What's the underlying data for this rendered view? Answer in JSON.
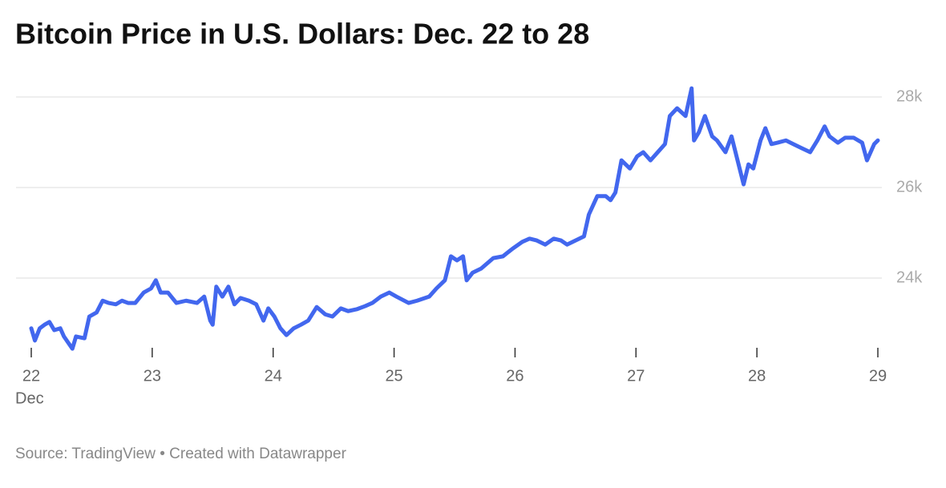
{
  "chart_data": {
    "type": "line",
    "title": "Bitcoin Price in U.S. Dollars: Dec. 22 to 28",
    "source": "Source: TradingView • Created with Datawrapper",
    "x_axis_label": "Dec",
    "xlim": [
      22,
      29
    ],
    "xticks": [
      22,
      23,
      24,
      25,
      26,
      27,
      28,
      29
    ],
    "ylim": [
      22500,
      28400
    ],
    "yticks": [
      {
        "value": 24000,
        "label": "24k"
      },
      {
        "value": 26000,
        "label": "26k"
      },
      {
        "value": 28000,
        "label": "28k"
      }
    ],
    "grid": true,
    "series": [
      {
        "color": "#4267ee",
        "x": [
          22.0,
          22.03,
          22.07,
          22.11,
          22.15,
          22.19,
          22.24,
          22.27,
          22.34,
          22.37,
          22.44,
          22.48,
          22.54,
          22.59,
          22.64,
          22.7,
          22.75,
          22.8,
          22.86,
          22.93,
          22.99,
          23.03,
          23.07,
          23.13,
          23.2,
          23.28,
          23.37,
          23.43,
          23.48,
          23.5,
          23.53,
          23.58,
          23.63,
          23.68,
          23.73,
          23.8,
          23.86,
          23.92,
          23.96,
          24.01,
          24.06,
          24.11,
          24.17,
          24.23,
          24.29,
          24.36,
          24.43,
          24.49,
          24.56,
          24.62,
          24.69,
          24.76,
          24.82,
          24.89,
          24.96,
          25.02,
          25.12,
          25.19,
          25.29,
          25.35,
          25.42,
          25.47,
          25.52,
          25.57,
          25.6,
          25.65,
          25.72,
          25.82,
          25.9,
          25.98,
          26.06,
          26.12,
          26.18,
          26.25,
          26.32,
          26.38,
          26.43,
          26.5,
          26.57,
          26.61,
          26.68,
          26.75,
          26.79,
          26.83,
          26.88,
          26.95,
          27.01,
          27.06,
          27.12,
          27.18,
          27.24,
          27.28,
          27.34,
          27.41,
          27.46,
          27.48,
          27.52,
          27.57,
          27.63,
          27.67,
          27.74,
          27.79,
          27.84,
          27.89,
          27.93,
          27.97,
          28.03,
          28.07,
          28.12,
          28.17,
          28.24,
          28.3,
          28.37,
          28.44,
          28.5,
          28.56,
          28.6,
          28.67,
          28.73,
          28.8,
          28.87,
          28.91,
          28.97,
          29.0
        ],
        "values": [
          22890,
          22620,
          22890,
          22970,
          23030,
          22850,
          22890,
          22710,
          22440,
          22710,
          22670,
          23150,
          23240,
          23500,
          23450,
          23420,
          23500,
          23450,
          23450,
          23680,
          23770,
          23950,
          23680,
          23680,
          23450,
          23500,
          23450,
          23590,
          23060,
          22970,
          23810,
          23590,
          23810,
          23420,
          23560,
          23500,
          23420,
          23060,
          23330,
          23150,
          22890,
          22740,
          22890,
          22970,
          23060,
          23360,
          23200,
          23150,
          23330,
          23270,
          23310,
          23380,
          23450,
          23590,
          23680,
          23590,
          23450,
          23500,
          23590,
          23770,
          23950,
          24480,
          24390,
          24480,
          23950,
          24120,
          24210,
          24440,
          24480,
          24650,
          24800,
          24870,
          24830,
          24740,
          24870,
          24830,
          24740,
          24830,
          24920,
          25400,
          25810,
          25810,
          25720,
          25890,
          26600,
          26420,
          26690,
          26780,
          26600,
          26780,
          26960,
          27580,
          27750,
          27580,
          28190,
          27040,
          27220,
          27580,
          27130,
          27040,
          26780,
          27130,
          26600,
          26070,
          26510,
          26420,
          27040,
          27310,
          26960,
          26990,
          27040,
          26960,
          26870,
          26780,
          27040,
          27350,
          27130,
          26990,
          27100,
          27100,
          26990,
          26600,
          26960,
          27040
        ]
      }
    ]
  }
}
